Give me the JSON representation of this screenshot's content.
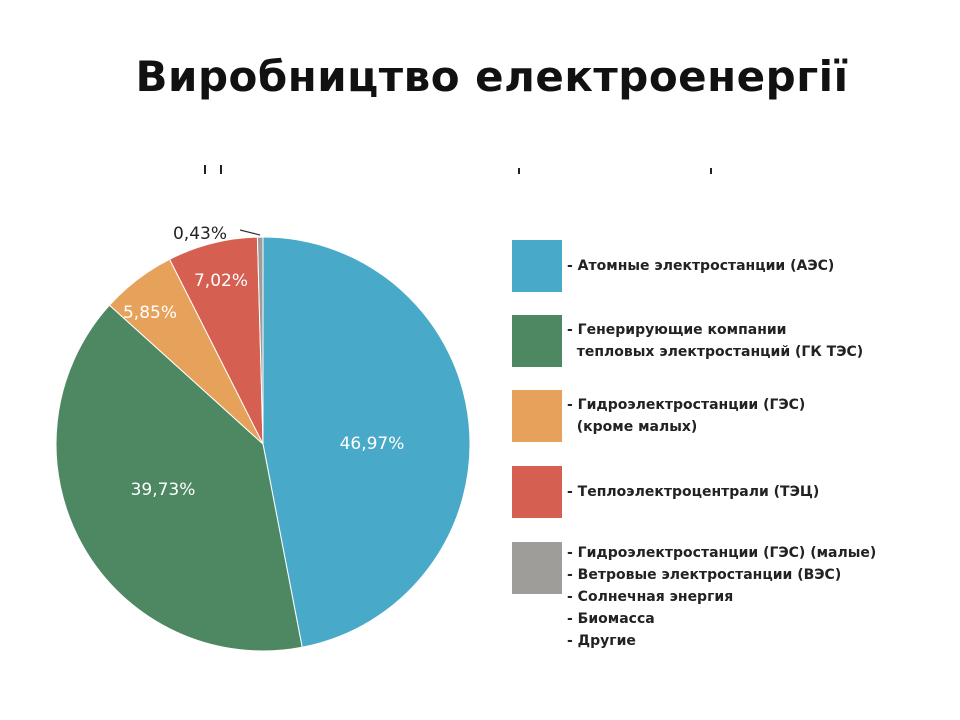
{
  "title": "Виробництво електроенергії",
  "chart_data": {
    "type": "pie",
    "slices": [
      {
        "label": "- Атомные электростанции (АЭС)",
        "value": 46.97,
        "value_label": "46,97%",
        "color": "#49a9c8"
      },
      {
        "label": "- Генерирующие компании\n  тепловых электростанций (ГК ТЭС)",
        "value": 39.73,
        "value_label": "39,73%",
        "color": "#4d8862"
      },
      {
        "label": "- Гидроэлектростанции (ГЭС)\n  (кроме малых)",
        "value": 5.85,
        "value_label": "5,85%",
        "color": "#e6a25a"
      },
      {
        "label": "- Теплоэлектроцентрали (ТЭЦ)",
        "value": 7.02,
        "value_label": "7,02%",
        "color": "#d55f50"
      },
      {
        "label": "- Гидроэлектростанции (ГЭС) (малые)\n- Ветровые электростанции (ВЭС)\n- Солнечная энергия\n- Биомасса\n- Другие",
        "value": 0.43,
        "value_label": "0,43%",
        "color": "#9f9d99"
      }
    ],
    "start_angle": "top",
    "direction": "clockwise",
    "legend_position": "right"
  }
}
